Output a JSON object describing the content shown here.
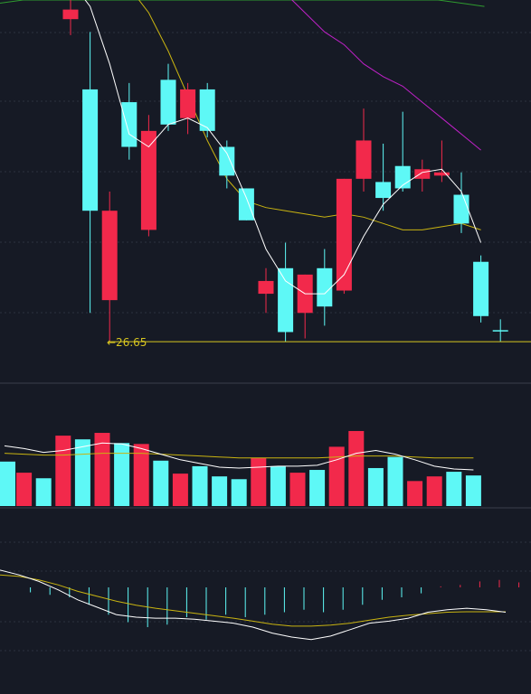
{
  "colors": {
    "background": "#161a25",
    "up": "#f2294b",
    "down": "#5ef8f6",
    "ma_short": "#ffffff",
    "ma_mid": "#c9b411",
    "ma_long": "#c021c8",
    "ma_longest": "#2f9c2f",
    "low_line": "#d8c620",
    "grid": "#2c313e",
    "macd_dif": "#ffffff",
    "macd_dea": "#c9b411"
  },
  "chart_data": [
    {
      "type": "candlestick",
      "panel": "price",
      "title": "",
      "ylim": [
        26.0,
        32.0
      ],
      "candles": [
        {
          "open": 31.7,
          "close": 31.85,
          "high": 32.1,
          "low": 31.45,
          "color": "up"
        },
        {
          "open": 30.6,
          "close": 28.7,
          "high": 31.5,
          "low": 27.1,
          "color": "down"
        },
        {
          "open": 27.3,
          "close": 28.7,
          "high": 29.0,
          "low": 26.65,
          "color": "up"
        },
        {
          "open": 30.4,
          "close": 29.7,
          "high": 30.7,
          "low": 29.5,
          "color": "down"
        },
        {
          "open": 29.95,
          "close": 28.4,
          "high": 30.2,
          "low": 28.3,
          "color": "up"
        },
        {
          "open": 30.75,
          "close": 30.05,
          "high": 31.0,
          "low": 29.95,
          "color": "down"
        },
        {
          "open": 30.15,
          "close": 30.6,
          "high": 30.7,
          "low": 29.9,
          "color": "up"
        },
        {
          "open": 30.6,
          "close": 29.95,
          "high": 30.7,
          "low": 29.85,
          "color": "down"
        },
        {
          "open": 29.7,
          "close": 29.25,
          "high": 29.8,
          "low": 29.05,
          "color": "down"
        },
        {
          "open": 29.05,
          "close": 28.55,
          "high": 29.05,
          "low": 28.55,
          "color": "down"
        },
        {
          "open": 27.4,
          "close": 27.6,
          "high": 27.8,
          "low": 27.1,
          "color": "up"
        },
        {
          "open": 27.8,
          "close": 26.8,
          "high": 28.2,
          "low": 26.65,
          "color": "down"
        },
        {
          "open": 27.1,
          "close": 27.7,
          "high": 27.7,
          "low": 26.7,
          "color": "up"
        },
        {
          "open": 27.8,
          "close": 27.2,
          "high": 28.1,
          "low": 26.9,
          "color": "down"
        },
        {
          "open": 27.45,
          "close": 29.2,
          "high": 29.2,
          "low": 27.4,
          "color": "up"
        },
        {
          "open": 29.2,
          "close": 29.8,
          "high": 30.3,
          "low": 29.0,
          "color": "up"
        },
        {
          "open": 29.15,
          "close": 28.9,
          "high": 29.75,
          "low": 28.7,
          "color": "down"
        },
        {
          "open": 29.4,
          "close": 29.05,
          "high": 30.25,
          "low": 29.0,
          "color": "down"
        },
        {
          "open": 29.35,
          "close": 29.2,
          "high": 29.5,
          "low": 29.0,
          "color": "up"
        },
        {
          "open": 29.25,
          "close": 29.3,
          "high": 29.8,
          "low": 29.15,
          "color": "up"
        },
        {
          "open": 28.95,
          "close": 28.5,
          "high": 29.3,
          "low": 28.35,
          "color": "down"
        },
        {
          "open": 27.9,
          "close": 27.05,
          "high": 28.0,
          "low": 26.95,
          "color": "down"
        },
        {
          "open": 26.83,
          "close": 26.83,
          "high": 27.0,
          "low": 26.65,
          "color": "down"
        }
      ],
      "ma_short": [
        32.3,
        31.9,
        31.0,
        29.9,
        29.7,
        30.05,
        30.15,
        30.0,
        29.6,
        28.9,
        28.1,
        27.6,
        27.4,
        27.4,
        27.7,
        28.3,
        28.8,
        29.1,
        29.3,
        29.35,
        29.0,
        28.2,
        null
      ],
      "ma_mid": [
        null,
        null,
        null,
        32.2,
        31.8,
        31.2,
        30.5,
        29.8,
        29.2,
        28.85,
        28.75,
        28.7,
        28.65,
        28.6,
        28.65,
        28.6,
        28.5,
        28.4,
        28.4,
        28.45,
        28.5,
        28.4,
        null
      ],
      "ma_long": [
        null,
        null,
        null,
        null,
        null,
        null,
        null,
        null,
        null,
        null,
        null,
        32.1,
        31.8,
        31.5,
        31.3,
        31.0,
        30.8,
        30.65,
        30.4,
        30.15,
        29.9,
        29.65,
        null
      ],
      "ma_longest": [
        31.95,
        32.0,
        32.0,
        32.0,
        32.0,
        32.0,
        32.0,
        32.0,
        32.0,
        32.0,
        32.0,
        32.0,
        32.0,
        32.0,
        32.0,
        32.0,
        32.0,
        32.0,
        32.0,
        32.0,
        31.95,
        31.9,
        null
      ],
      "min_label": "26.65",
      "min_value": 26.65
    },
    {
      "type": "bar",
      "panel": "volume",
      "title": "",
      "ylim": [
        0,
        80
      ],
      "values": [
        48,
        36,
        30,
        76,
        72,
        79,
        68,
        67,
        49,
        35,
        43,
        32,
        29,
        52,
        43,
        36,
        39,
        64,
        81,
        41,
        53,
        27,
        32,
        37,
        33
      ],
      "colors": [
        "down",
        "up",
        "down",
        "up",
        "down",
        "up",
        "down",
        "up",
        "down",
        "up",
        "down",
        "down",
        "down",
        "up",
        "down",
        "up",
        "down",
        "up",
        "up",
        "down",
        "down",
        "up",
        "up",
        "down",
        "down"
      ],
      "ma_a": [
        65,
        62,
        58,
        60,
        64,
        68,
        67,
        62,
        56,
        50,
        46,
        42,
        41,
        42,
        43,
        43,
        44,
        50,
        57,
        60,
        56,
        50,
        43,
        40,
        39
      ],
      "ma_b": [
        57,
        56,
        55,
        55,
        56,
        57,
        57,
        57,
        56,
        55,
        54,
        53,
        52,
        52,
        52,
        52,
        52,
        53,
        54,
        54,
        54,
        53,
        52,
        52,
        52
      ]
    },
    {
      "type": "bar",
      "panel": "macd",
      "title": "",
      "ylim": [
        -1.2,
        0.6
      ],
      "values": [
        0.0,
        -0.1,
        -0.15,
        -0.2,
        -0.35,
        -0.55,
        -0.7,
        -0.8,
        -0.75,
        -0.6,
        -0.65,
        -0.55,
        -0.6,
        -0.55,
        -0.5,
        -0.45,
        -0.5,
        -0.45,
        -0.35,
        -0.25,
        -0.2,
        -0.12,
        0.02,
        0.05,
        0.12,
        0.15,
        0.1,
        0.05,
        0.02,
        0.0
      ],
      "dif": [
        0.35,
        0.25,
        0.12,
        -0.05,
        -0.25,
        -0.4,
        -0.55,
        -0.6,
        -0.62,
        -0.62,
        -0.64,
        -0.68,
        -0.72,
        -0.8,
        -0.92,
        -1.0,
        -1.05,
        -0.98,
        -0.85,
        -0.72,
        -0.68,
        -0.62,
        -0.5,
        -0.45,
        -0.42,
        -0.45,
        -0.5
      ],
      "dea": [
        0.25,
        0.22,
        0.15,
        0.05,
        -0.08,
        -0.18,
        -0.28,
        -0.36,
        -0.42,
        -0.47,
        -0.52,
        -0.57,
        -0.62,
        -0.68,
        -0.74,
        -0.78,
        -0.78,
        -0.76,
        -0.72,
        -0.66,
        -0.6,
        -0.56,
        -0.53,
        -0.5,
        -0.49,
        -0.49,
        -0.49
      ]
    }
  ]
}
